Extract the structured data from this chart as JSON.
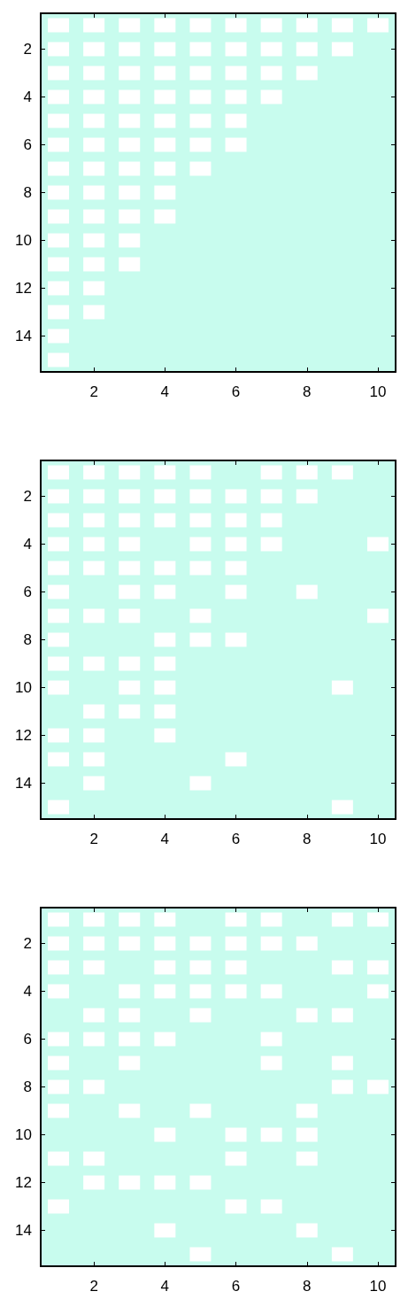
{
  "chart_data": [
    {
      "type": "scatter",
      "marker": "square",
      "grid": false,
      "xlim": [
        0.5,
        10.5
      ],
      "xticks": [
        2,
        4,
        6,
        8,
        10
      ],
      "ylim": [
        15.5,
        0.5
      ],
      "yticks": [
        2,
        4,
        6,
        8,
        10,
        12,
        14
      ],
      "series": [
        {
          "color": "#ffffff",
          "x": [
            1,
            2,
            3,
            4,
            5,
            6,
            7,
            8,
            9,
            10,
            1,
            2,
            3,
            4,
            5,
            6,
            7,
            8,
            9,
            1,
            2,
            3,
            4,
            5,
            6,
            7,
            8,
            1,
            2,
            3,
            4,
            5,
            6,
            7,
            1,
            2,
            3,
            4,
            5,
            6,
            1,
            2,
            3,
            4,
            5,
            6,
            1,
            2,
            3,
            4,
            5,
            1,
            2,
            3,
            4,
            1,
            2,
            3,
            4,
            1,
            2,
            3,
            1,
            2,
            3,
            1,
            2,
            1,
            2,
            1,
            1
          ],
          "values": [
            1,
            1,
            1,
            1,
            1,
            1,
            1,
            1,
            1,
            1,
            2,
            2,
            2,
            2,
            2,
            2,
            2,
            2,
            2,
            3,
            3,
            3,
            3,
            3,
            3,
            3,
            3,
            4,
            4,
            4,
            4,
            4,
            4,
            4,
            5,
            5,
            5,
            5,
            5,
            5,
            6,
            6,
            6,
            6,
            6,
            6,
            7,
            7,
            7,
            7,
            7,
            8,
            8,
            8,
            8,
            9,
            9,
            9,
            9,
            10,
            10,
            10,
            11,
            11,
            11,
            12,
            12,
            13,
            13,
            14,
            15
          ]
        }
      ]
    },
    {
      "type": "scatter",
      "marker": "square",
      "grid": false,
      "xlim": [
        0.5,
        10.5
      ],
      "xticks": [
        2,
        4,
        6,
        8,
        10
      ],
      "ylim": [
        15.5,
        0.5
      ],
      "yticks": [
        2,
        4,
        6,
        8,
        10,
        12,
        14
      ],
      "series": [
        {
          "color": "#ffffff",
          "x": [
            1,
            2,
            3,
            4,
            5,
            7,
            8,
            9,
            1,
            2,
            3,
            4,
            5,
            6,
            7,
            8,
            1,
            2,
            3,
            4,
            5,
            6,
            7,
            1,
            2,
            3,
            5,
            6,
            7,
            10,
            1,
            2,
            3,
            4,
            5,
            6,
            1,
            3,
            4,
            6,
            8,
            1,
            2,
            3,
            5,
            10,
            1,
            4,
            5,
            6,
            1,
            2,
            3,
            4,
            1,
            3,
            4,
            9,
            2,
            3,
            4,
            1,
            2,
            4,
            1,
            2,
            6,
            2,
            5,
            1,
            9
          ],
          "values": [
            1,
            1,
            1,
            1,
            1,
            1,
            1,
            1,
            2,
            2,
            2,
            2,
            2,
            2,
            2,
            2,
            3,
            3,
            3,
            3,
            3,
            3,
            3,
            4,
            4,
            4,
            4,
            4,
            4,
            4,
            5,
            5,
            5,
            5,
            5,
            5,
            6,
            6,
            6,
            6,
            6,
            7,
            7,
            7,
            7,
            7,
            8,
            8,
            8,
            8,
            9,
            9,
            9,
            9,
            10,
            10,
            10,
            10,
            11,
            11,
            11,
            12,
            12,
            12,
            13,
            13,
            13,
            14,
            14,
            15,
            15
          ]
        }
      ]
    },
    {
      "type": "scatter",
      "marker": "square",
      "grid": false,
      "xlim": [
        0.5,
        10.5
      ],
      "xticks": [
        2,
        4,
        6,
        8,
        10
      ],
      "ylim": [
        15.5,
        0.5
      ],
      "yticks": [
        2,
        4,
        6,
        8,
        10,
        12,
        14
      ],
      "series": [
        {
          "color": "#ffffff",
          "x": [
            1,
            2,
            3,
            4,
            6,
            7,
            9,
            10,
            1,
            2,
            3,
            4,
            5,
            6,
            7,
            8,
            1,
            2,
            4,
            5,
            6,
            9,
            10,
            1,
            3,
            4,
            5,
            6,
            7,
            10,
            2,
            3,
            5,
            8,
            9,
            1,
            2,
            3,
            4,
            7,
            1,
            3,
            7,
            9,
            1,
            2,
            9,
            10,
            1,
            3,
            5,
            8,
            4,
            6,
            7,
            8,
            1,
            2,
            6,
            8,
            2,
            3,
            4,
            5,
            1,
            6,
            7,
            4,
            8,
            5,
            9
          ],
          "values": [
            1,
            1,
            1,
            1,
            1,
            1,
            1,
            1,
            2,
            2,
            2,
            2,
            2,
            2,
            2,
            2,
            3,
            3,
            3,
            3,
            3,
            3,
            3,
            4,
            4,
            4,
            4,
            4,
            4,
            4,
            5,
            5,
            5,
            5,
            5,
            6,
            6,
            6,
            6,
            6,
            7,
            7,
            7,
            7,
            8,
            8,
            8,
            8,
            9,
            9,
            9,
            9,
            10,
            10,
            10,
            10,
            11,
            11,
            11,
            11,
            12,
            12,
            12,
            12,
            13,
            13,
            13,
            14,
            14,
            15,
            15
          ]
        }
      ]
    }
  ]
}
